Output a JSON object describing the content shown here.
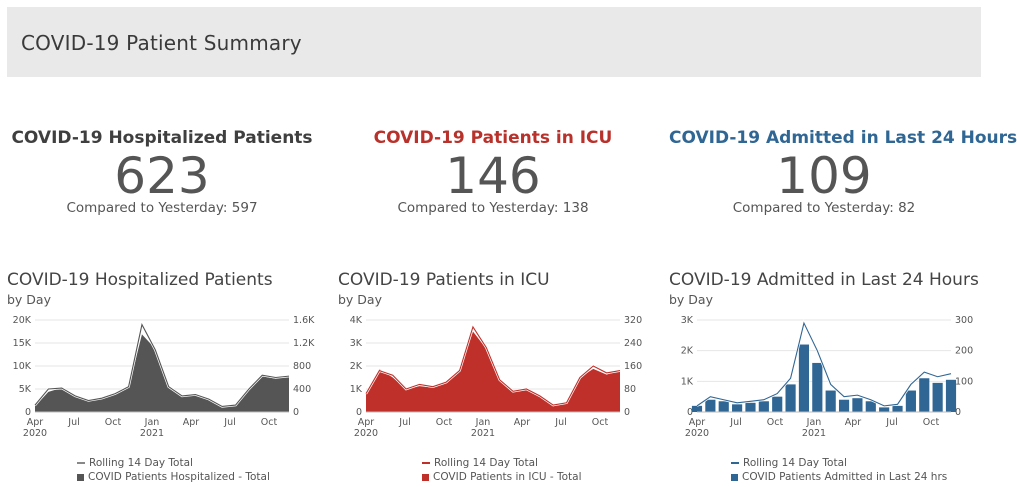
{
  "header": {
    "title": "COVID-19 Patient Summary"
  },
  "kpis": [
    {
      "title": "COVID-19 Hospitalized Patients",
      "value": "623",
      "compare": "Compared to Yesterday: 597",
      "color": "#3f3f3f"
    },
    {
      "title": "COVID-19 Patients in ICU",
      "value": "146",
      "compare": "Compared to Yesterday: 138",
      "color": "#b8312a"
    },
    {
      "title": "COVID-19 Admitted in Last 24 Hours",
      "value": "109",
      "compare": "Compared to Yesterday: 82",
      "color": "#2f6694"
    }
  ],
  "panels": [
    {
      "title": "COVID-19 Hospitalized Patients",
      "subtitle": "by Day",
      "legend": [
        "Rolling 14 Day Total",
        "COVID Patients Hospitalized - Total"
      ]
    },
    {
      "title": "COVID-19 Patients in ICU",
      "subtitle": "by Day",
      "legend": [
        "Rolling 14 Day Total",
        "COVID Patients in ICU - Total"
      ]
    },
    {
      "title": "COVID-19 Admitted in Last 24 Hours",
      "subtitle": "by Day",
      "legend": [
        "Rolling 14 Day Total",
        "COVID Patients Admitted in Last 24 hrs"
      ]
    }
  ],
  "chart_data": [
    {
      "type": "area",
      "color": "#555555",
      "line_color": "#555555",
      "x_ticks": [
        "Apr\n2020",
        "Jul",
        "Oct",
        "Jan\n2021",
        "Apr",
        "Jul",
        "Oct"
      ],
      "y_left_ticks": [
        "0",
        "5K",
        "10K",
        "15K",
        "20K"
      ],
      "y_left_lim": [
        0,
        20000
      ],
      "y_right_ticks": [
        "0",
        "400",
        "800",
        "1.2K",
        "1.6K"
      ],
      "y_right_lim": [
        0,
        1600
      ],
      "x": [
        "2020-04",
        "2020-05",
        "2020-06",
        "2020-07",
        "2020-08",
        "2020-09",
        "2020-10",
        "2020-11",
        "2020-12",
        "2021-01",
        "2021-02",
        "2021-03",
        "2021-04",
        "2021-05",
        "2021-06",
        "2021-07",
        "2021-08",
        "2021-09",
        "2021-10",
        "2021-11"
      ],
      "series": [
        {
          "name": "COVID Patients Hospitalized - Total",
          "axis": "right",
          "values": [
            100,
            350,
            420,
            300,
            200,
            230,
            300,
            420,
            1350,
            1100,
            450,
            280,
            300,
            220,
            100,
            110,
            400,
            620,
            580,
            620
          ]
        },
        {
          "name": "Rolling 14 Day Total",
          "axis": "left",
          "values": [
            1500,
            5000,
            5200,
            3500,
            2500,
            3000,
            4000,
            5500,
            19000,
            13500,
            5500,
            3500,
            3800,
            2800,
            1200,
            1500,
            5000,
            8000,
            7500,
            7800
          ]
        }
      ]
    },
    {
      "type": "area",
      "color": "#c0302a",
      "line_color": "#c0302a",
      "x_ticks": [
        "Apr\n2020",
        "Jul",
        "Oct",
        "Jan\n2021",
        "Apr",
        "Jul",
        "Oct"
      ],
      "y_left_ticks": [
        "0",
        "1K",
        "2K",
        "3K",
        "4K"
      ],
      "y_left_lim": [
        0,
        4000
      ],
      "y_right_ticks": [
        "0",
        "80",
        "160",
        "240",
        "320"
      ],
      "y_right_lim": [
        0,
        320
      ],
      "x": [
        "2020-04",
        "2020-05",
        "2020-06",
        "2020-07",
        "2020-08",
        "2020-09",
        "2020-10",
        "2020-11",
        "2020-12",
        "2021-01",
        "2021-02",
        "2021-03",
        "2021-04",
        "2021-05",
        "2021-06",
        "2021-07",
        "2021-08",
        "2021-09",
        "2021-10",
        "2021-11"
      ],
      "series": [
        {
          "name": "COVID Patients in ICU - Total",
          "axis": "right",
          "values": [
            60,
            150,
            120,
            80,
            90,
            85,
            100,
            140,
            280,
            220,
            110,
            70,
            80,
            60,
            20,
            30,
            120,
            150,
            130,
            145
          ]
        },
        {
          "name": "Rolling 14 Day Total",
          "axis": "left",
          "values": [
            800,
            1800,
            1600,
            1000,
            1200,
            1100,
            1300,
            1800,
            3700,
            2800,
            1400,
            900,
            1000,
            700,
            300,
            400,
            1500,
            2000,
            1700,
            1800
          ]
        }
      ]
    },
    {
      "type": "bar",
      "color": "#2f6694",
      "line_color": "#2f6694",
      "x_ticks": [
        "Apr\n2020",
        "Jul",
        "Oct",
        "Jan\n2021",
        "Apr",
        "Jul",
        "Oct"
      ],
      "y_left_ticks": [
        "0",
        "1K",
        "2K",
        "3K"
      ],
      "y_left_lim": [
        0,
        3000
      ],
      "y_right_ticks": [
        "0",
        "100",
        "200",
        "300"
      ],
      "y_right_lim": [
        0,
        300
      ],
      "x": [
        "2020-04",
        "2020-05",
        "2020-06",
        "2020-07",
        "2020-08",
        "2020-09",
        "2020-10",
        "2020-11",
        "2020-12",
        "2021-01",
        "2021-02",
        "2021-03",
        "2021-04",
        "2021-05",
        "2021-06",
        "2021-07",
        "2021-08",
        "2021-09",
        "2021-10",
        "2021-11"
      ],
      "series": [
        {
          "name": "COVID Patients Admitted in Last 24 hrs",
          "axis": "right",
          "values": [
            20,
            40,
            35,
            25,
            30,
            35,
            50,
            90,
            220,
            160,
            70,
            40,
            45,
            35,
            15,
            20,
            70,
            110,
            95,
            105
          ]
        },
        {
          "name": "Rolling 14 Day Total",
          "axis": "left",
          "values": [
            200,
            500,
            400,
            300,
            350,
            400,
            600,
            1100,
            2900,
            2000,
            900,
            500,
            550,
            400,
            200,
            250,
            900,
            1300,
            1150,
            1250
          ]
        }
      ]
    }
  ]
}
